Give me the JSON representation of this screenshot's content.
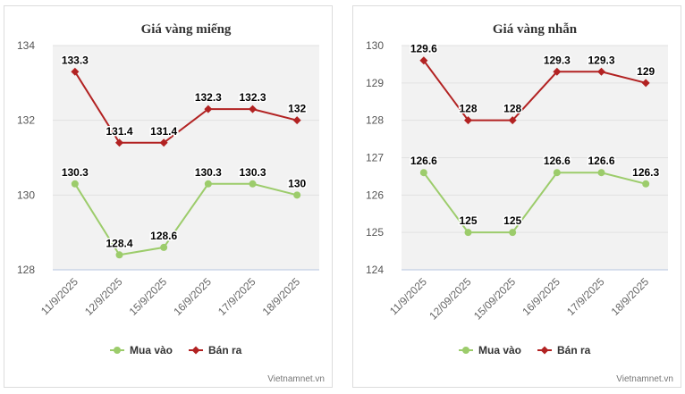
{
  "chart_data": [
    {
      "type": "line",
      "title": "Giá vàng miếng",
      "categories": [
        "11/9/2025",
        "12/9/2025",
        "15/9/2025",
        "16/9/2025",
        "17/9/2025",
        "18/9/2025"
      ],
      "series": [
        {
          "name": "Mua vào",
          "values": [
            130.3,
            128.4,
            128.6,
            130.3,
            130.3,
            130
          ],
          "labels": [
            "130.3",
            "128.4",
            "128.6",
            "130.3",
            "130.3",
            "130"
          ],
          "color": "#9ccc6b"
        },
        {
          "name": "Bán ra",
          "values": [
            133.3,
            131.4,
            131.4,
            132.3,
            132.3,
            132
          ],
          "labels": [
            "133.3",
            "131.4",
            "131.4",
            "132.3",
            "132.3",
            "132"
          ],
          "color": "#b22222"
        }
      ],
      "ylim": [
        128,
        134
      ],
      "yticks": [
        128,
        130,
        132,
        134
      ],
      "grid": true,
      "legend": "bottom",
      "source": "Vietnamnet.vn"
    },
    {
      "type": "line",
      "title": "Giá vàng nhẫn",
      "categories": [
        "11/9/2025",
        "12/09/2025",
        "15/09/2025",
        "16/9/2025",
        "17/9/2025",
        "18/9/2025"
      ],
      "series": [
        {
          "name": "Mua vào",
          "values": [
            126.6,
            125,
            125,
            126.6,
            126.6,
            126.3
          ],
          "labels": [
            "126.6",
            "125",
            "125",
            "126.6",
            "126.6",
            "126.3"
          ],
          "color": "#9ccc6b"
        },
        {
          "name": "Bán ra",
          "values": [
            129.6,
            128,
            128,
            129.3,
            129.3,
            129
          ],
          "labels": [
            "129.6",
            "128",
            "128",
            "129.3",
            "129.3",
            "129"
          ],
          "color": "#b22222"
        }
      ],
      "ylim": [
        124,
        130
      ],
      "yticks": [
        124,
        125,
        126,
        127,
        128,
        129,
        130
      ],
      "grid": true,
      "legend": "bottom",
      "source": "Vietnamnet.vn"
    }
  ]
}
